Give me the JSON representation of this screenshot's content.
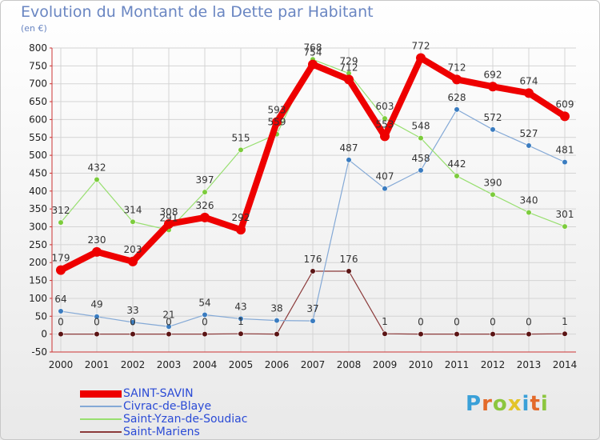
{
  "title": "Evolution du Montant de la Dette par Habitant",
  "subtitle": "(en €)",
  "logo": {
    "text": "Proxiti",
    "colors": [
      "#3aa0d8",
      "#e36a2a",
      "#8cc63f",
      "#e3c42a",
      "#3aa0d8",
      "#e36a2a",
      "#8cc63f"
    ]
  },
  "chart_data": {
    "type": "line",
    "title": "Evolution du Montant de la Dette par Habitant",
    "ylabel": "(en €)",
    "x": [
      2000,
      2001,
      2002,
      2003,
      2004,
      2005,
      2006,
      2007,
      2008,
      2009,
      2010,
      2011,
      2012,
      2013,
      2014
    ],
    "ylim": [
      -50,
      800
    ],
    "yticks": [
      -50,
      0,
      50,
      100,
      150,
      200,
      250,
      300,
      350,
      400,
      450,
      500,
      550,
      600,
      650,
      700,
      750,
      800
    ],
    "grid": true,
    "legend_position": "bottom-left",
    "series": [
      {
        "name": "SAINT-SAVIN",
        "color": "#ee0000",
        "marker": "#ee0000",
        "values": [
          179,
          230,
          203,
          308,
          326,
          292,
          593,
          754,
          712,
          553,
          772,
          712,
          692,
          674,
          609
        ],
        "labels": [
          "179",
          "230",
          "203",
          "308",
          "326",
          "292",
          "593",
          "754",
          "712",
          "553",
          "772",
          "712",
          "692",
          "674",
          "609"
        ]
      },
      {
        "name": "Civrac-de-Blaye",
        "color": "#84a9d6",
        "marker": "#3a7cc0",
        "values": [
          64,
          49,
          33,
          21,
          54,
          43,
          38,
          37,
          487,
          407,
          458,
          628,
          572,
          527,
          481
        ],
        "labels": [
          "64",
          "49",
          "33",
          "21",
          "54",
          "43",
          "38",
          "37",
          "487",
          "407",
          "458",
          "628",
          "572",
          "527",
          "481"
        ]
      },
      {
        "name": "Saint-Yzan-de-Soudiac",
        "color": "#98df70",
        "marker": "#7ccc3c",
        "values": [
          312,
          432,
          314,
          291,
          397,
          515,
          559,
          768,
          729,
          603,
          548,
          442,
          390,
          340,
          301
        ],
        "labels": [
          "312",
          "432",
          "314",
          "291",
          "397",
          "515",
          "559",
          "768",
          "729",
          "603",
          "548",
          "442",
          "390",
          "340",
          "301"
        ]
      },
      {
        "name": "Saint-Mariens",
        "color": "#8b3a3a",
        "marker": "#5a1414",
        "values": [
          0,
          0,
          0,
          0,
          0,
          1,
          0,
          176,
          176,
          1,
          0,
          0,
          0,
          0,
          1
        ],
        "labels": [
          "0",
          "0",
          "0",
          "0",
          "0",
          "1",
          "",
          "176",
          "176",
          "1",
          "0",
          "0",
          "0",
          "0",
          "1"
        ]
      }
    ]
  }
}
